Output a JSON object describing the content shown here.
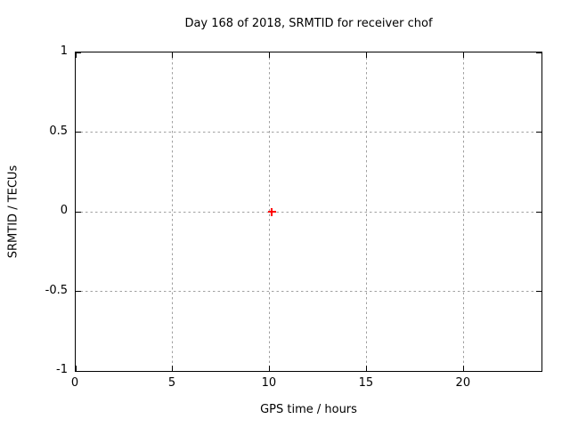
{
  "chart_data": {
    "type": "scatter",
    "title": "Day 168 of 2018, SRMTID for receiver chof",
    "xlabel": "GPS time / hours",
    "ylabel": "SRMTID / TECUs",
    "xlim": [
      0,
      24
    ],
    "ylim": [
      -1,
      1
    ],
    "xticks": [
      0,
      5,
      10,
      15,
      20
    ],
    "yticks": [
      -1,
      -0.5,
      0,
      0.5,
      1
    ],
    "grid": true,
    "legend": "none",
    "series": [
      {
        "name": "SRMTID",
        "marker": "plus",
        "color": "#ff0000",
        "points": [
          {
            "x": 10.1,
            "y": 0
          }
        ]
      }
    ],
    "colors": {
      "grid": "#a0a0a0",
      "axis": "#000000",
      "background": "#ffffff",
      "text": "#000000"
    }
  }
}
